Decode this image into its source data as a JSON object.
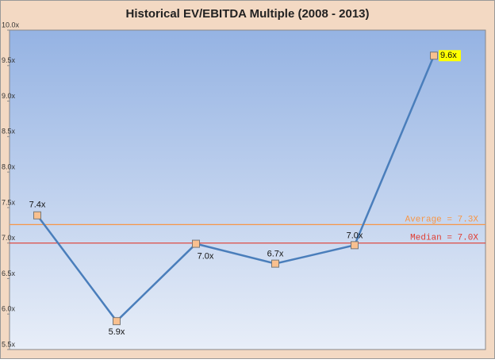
{
  "chart_data": {
    "type": "line",
    "title": "Historical EV/EBITDA Multiple (2008 - 2013)",
    "categories": [
      null,
      null,
      null,
      null,
      null,
      null
    ],
    "series": [
      {
        "name": null,
        "color": "#4a7ebb",
        "values": [
          7.39,
          5.9,
          6.99,
          6.71,
          6.97,
          9.64
        ],
        "value_labels": [
          "7.4x",
          "5.9x",
          "7.0x",
          "6.7x",
          "7.0x",
          "9.6x"
        ]
      }
    ],
    "ylim": [
      5.5,
      10.0
    ],
    "yticks": [
      {
        "value": 5.5,
        "label": "5.5x"
      },
      {
        "value": 6.0,
        "label": "6.0x"
      },
      {
        "value": 6.5,
        "label": "6.5x"
      },
      {
        "value": 7.0,
        "label": "7.0x"
      },
      {
        "value": 7.5,
        "label": "7.5x"
      },
      {
        "value": 8.0,
        "label": "8.0x"
      },
      {
        "value": 8.5,
        "label": "8.5x"
      },
      {
        "value": 9.0,
        "label": "9.0x"
      },
      {
        "value": 9.5,
        "label": "9.5x"
      },
      {
        "value": 10.0,
        "label": "10.0x"
      }
    ],
    "reference_lines": [
      {
        "label": "Average = 7.3X",
        "value": 7.26,
        "color": "#f79646"
      },
      {
        "label": "Median = 7.0X",
        "value": 7.0,
        "color": "#e03c31"
      }
    ]
  }
}
